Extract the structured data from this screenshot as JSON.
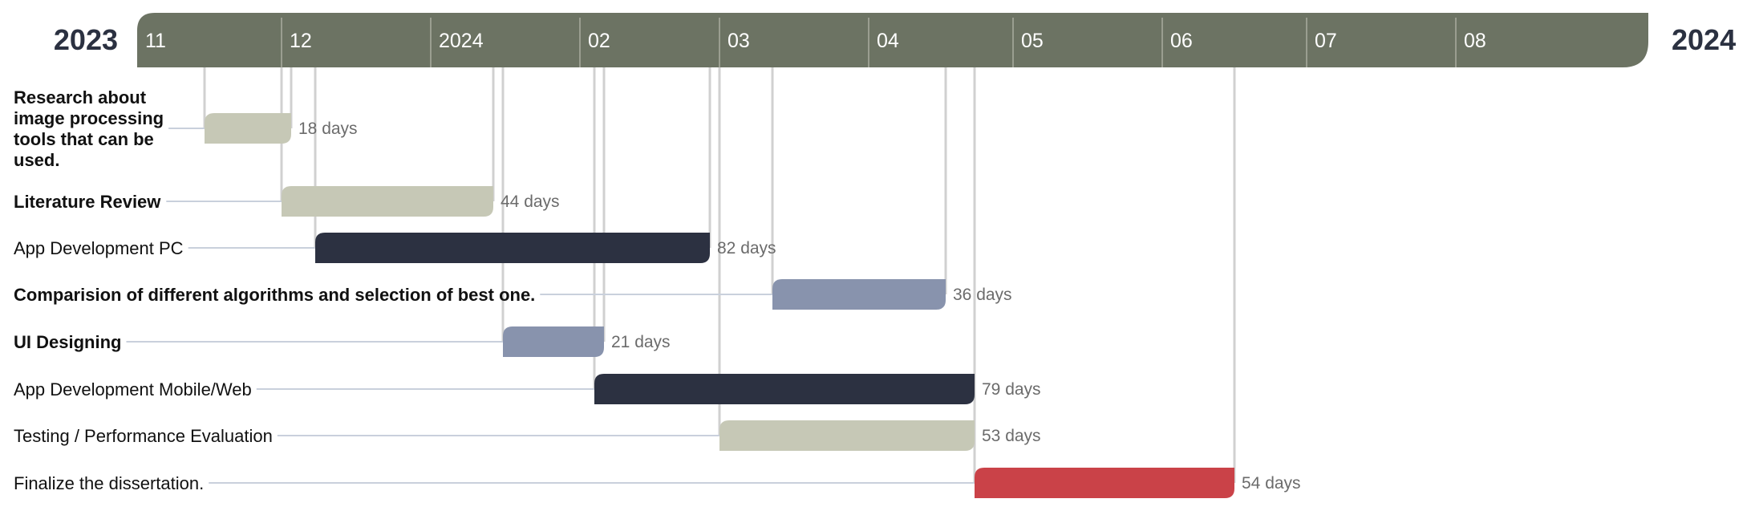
{
  "chart_data": {
    "type": "gantt",
    "year_start": "2023",
    "year_end": "2024",
    "months": [
      {
        "label": "11",
        "start": "2023-11-01"
      },
      {
        "label": "12",
        "start": "2023-12-01"
      },
      {
        "label": "2024",
        "start": "2024-01-01"
      },
      {
        "label": "02",
        "start": "2024-02-01"
      },
      {
        "label": "03",
        "start": "2024-03-01"
      },
      {
        "label": "04",
        "start": "2024-04-01"
      },
      {
        "label": "05",
        "start": "2024-05-01"
      },
      {
        "label": "06",
        "start": "2024-06-01"
      },
      {
        "label": "07",
        "start": "2024-07-01"
      },
      {
        "label": "08",
        "start": "2024-08-01"
      }
    ],
    "axis_end": "2024-09-10",
    "colors": {
      "header": "#6c7363",
      "sand": "#c6c8b6",
      "navy": "#2c3141",
      "slate": "#8893ad",
      "red": "#ca4248"
    },
    "tasks": [
      {
        "lines": [
          "Research about",
          "image processing",
          "tools that can be",
          "used."
        ],
        "bold": true,
        "start": "2023-11-15",
        "end": "2023-12-03",
        "duration": "18 days",
        "color": "#c6c8b6"
      },
      {
        "lines": [
          "Literature Review"
        ],
        "bold": true,
        "start": "2023-12-01",
        "end": "2024-01-14",
        "duration": "44 days",
        "color": "#c6c8b6"
      },
      {
        "lines": [
          "App Development PC"
        ],
        "bold": false,
        "start": "2023-12-08",
        "end": "2024-02-28",
        "duration": "82 days",
        "color": "#2c3141"
      },
      {
        "lines": [
          "Comparision of different algorithms and selection of best one."
        ],
        "bold": true,
        "start": "2024-03-12",
        "end": "2024-04-17",
        "duration": "36 days",
        "color": "#8893ad"
      },
      {
        "lines": [
          "UI Designing"
        ],
        "bold": true,
        "start": "2024-01-16",
        "end": "2024-02-06",
        "duration": "21 days",
        "color": "#8893ad"
      },
      {
        "lines": [
          "App Development Mobile/Web"
        ],
        "bold": false,
        "start": "2024-02-04",
        "end": "2024-04-23",
        "duration": "79 days",
        "color": "#2c3141"
      },
      {
        "lines": [
          "Testing / Performance Evaluation"
        ],
        "bold": false,
        "start": "2024-03-01",
        "end": "2024-04-23",
        "duration": "53 days",
        "color": "#c6c8b6"
      },
      {
        "lines": [
          "Finalize the dissertation."
        ],
        "bold": false,
        "start": "2024-04-23",
        "end": "2024-06-16",
        "duration": "54 days",
        "color": "#ca4248"
      }
    ]
  }
}
